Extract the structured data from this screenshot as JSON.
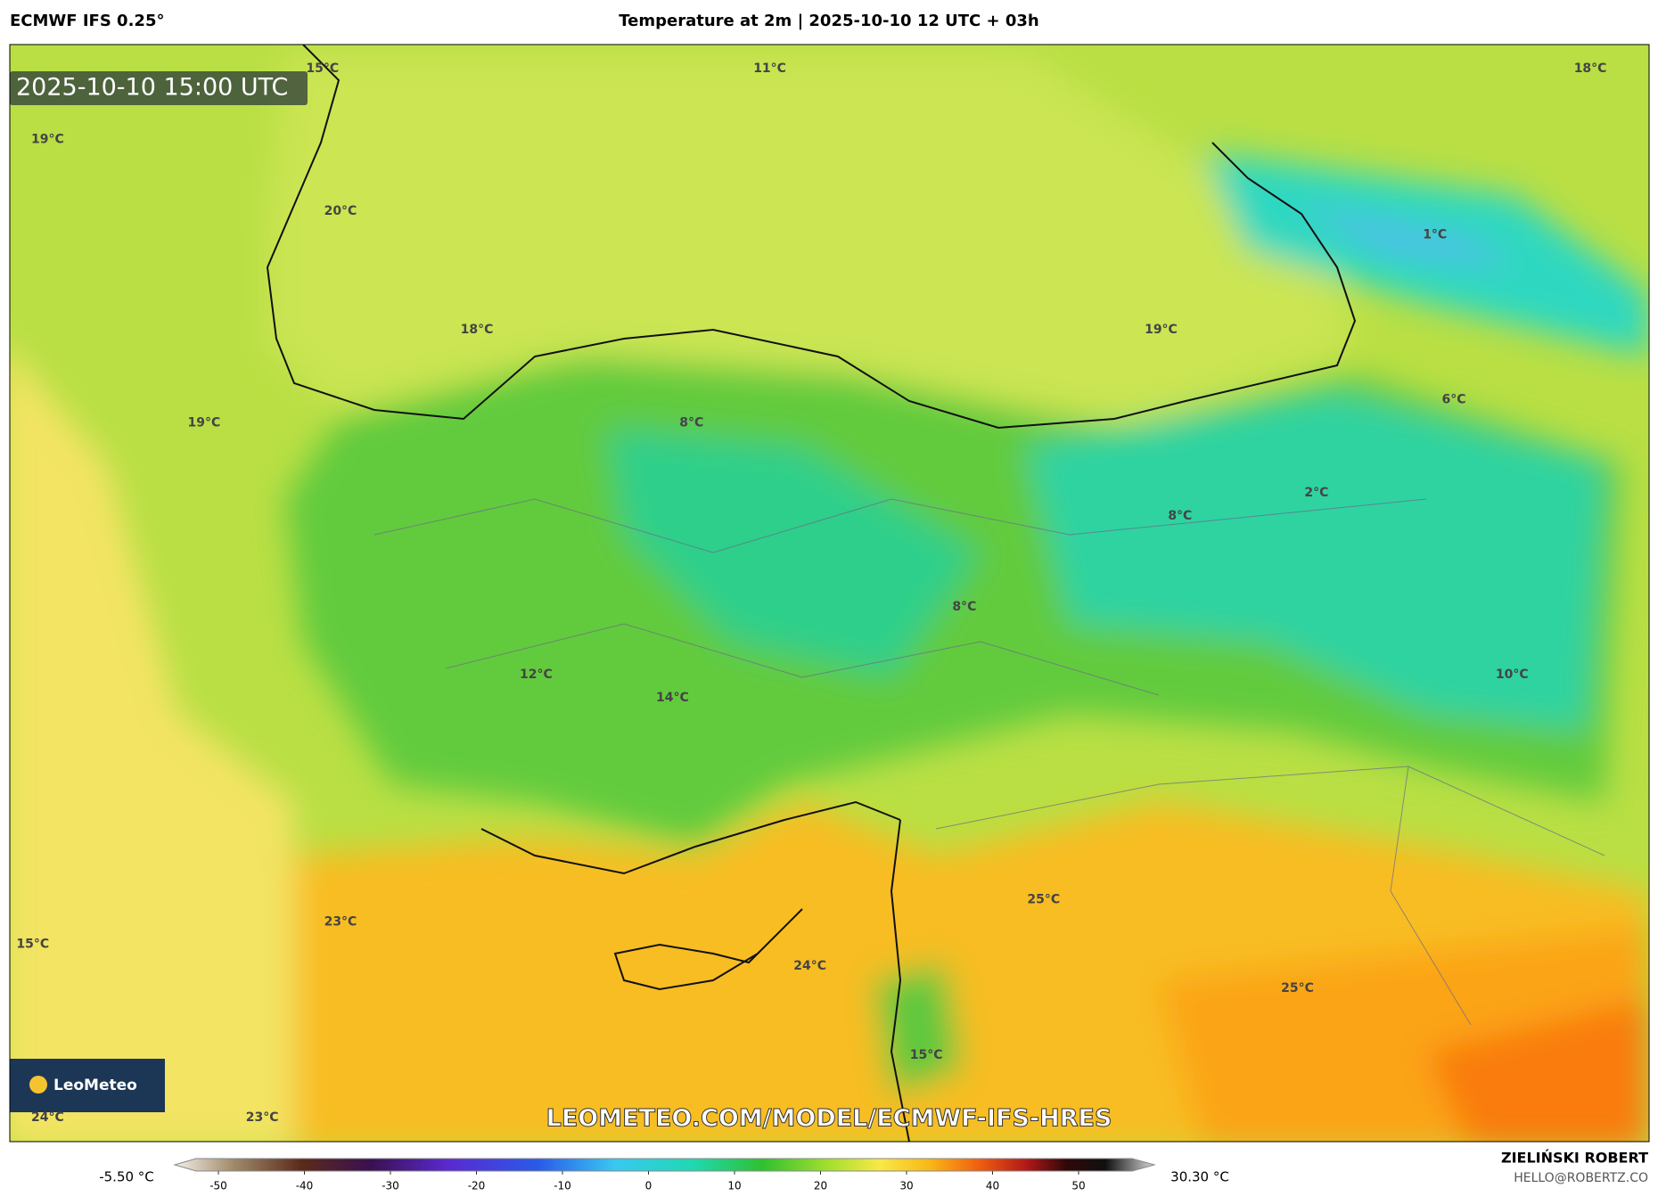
{
  "header": {
    "model": "ECMWF IFS 0.25°",
    "title": "Temperature at 2m | 2025-10-10 12 UTC + 03h"
  },
  "map": {
    "timestamp": "2025-10-10 15:00 UTC",
    "labels": [
      "15°C",
      "11°C",
      "18°C",
      "19°C",
      "20°C",
      "1°C",
      "18°C",
      "19°C",
      "6°C",
      "19°C",
      "8°C",
      "2°C",
      "8°C",
      "8°C",
      "10°C",
      "12°C",
      "14°C",
      "25°C",
      "23°C",
      "15°C",
      "24°C",
      "25°C",
      "15°C",
      "24°C",
      "23°C"
    ],
    "logo": "LeoMeteo",
    "watermark": "LEOMETEO.COM/MODEL/ECMWF-IFS-HRES"
  },
  "colorbar": {
    "min_label": "-5.50 °C",
    "max_label": "30.30 °C",
    "ticks": [
      -50,
      -40,
      -30,
      -20,
      -10,
      0,
      10,
      20,
      30,
      40,
      50
    ]
  },
  "footer": {
    "author": "ZIELIŃSKI ROBERT",
    "email": "HELLO@ROBERTZ.CO"
  }
}
